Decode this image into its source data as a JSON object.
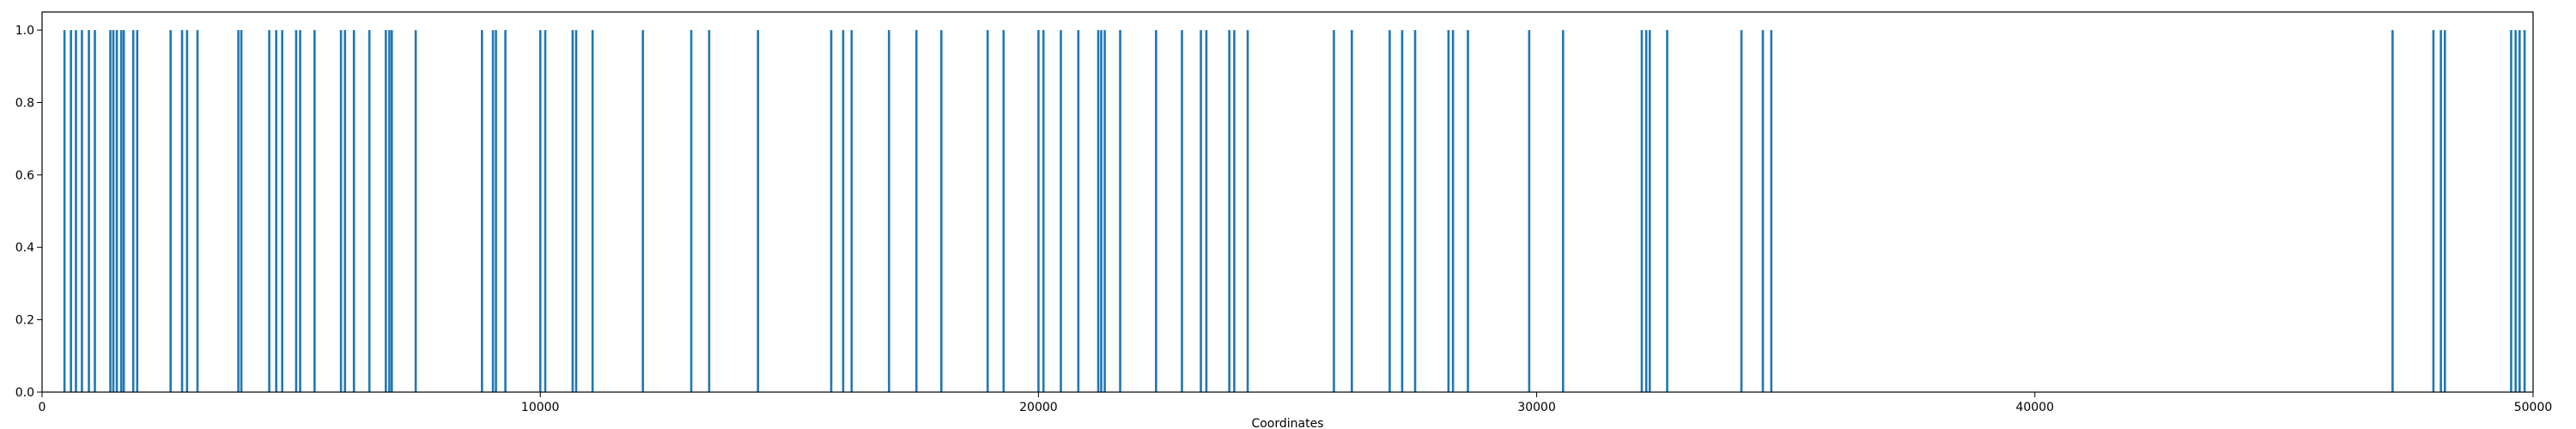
{
  "chart_data": {
    "type": "bar",
    "xlabel": "Coordinates",
    "ylabel": "",
    "xlim": [
      0,
      50000
    ],
    "ylim": [
      0.0,
      1.05
    ],
    "grid": false,
    "bar_color": "#1f77b4",
    "x_ticks": [
      0,
      10000,
      20000,
      30000,
      40000,
      50000
    ],
    "x_tick_labels": [
      "0",
      "10000",
      "20000",
      "30000",
      "40000",
      "50000"
    ],
    "y_ticks": [
      0.0,
      0.2,
      0.4,
      0.6,
      0.8,
      1.0
    ],
    "y_tick_labels": [
      "0.0",
      "0.2",
      "0.4",
      "0.6",
      "0.8",
      "1.0"
    ],
    "value": 1.0,
    "x": [
      450,
      580,
      680,
      800,
      940,
      1060,
      1370,
      1430,
      1500,
      1590,
      1640,
      1830,
      1910,
      2580,
      2810,
      2910,
      3120,
      3940,
      4000,
      4560,
      4700,
      4820,
      5100,
      5180,
      5470,
      6000,
      6080,
      6260,
      6570,
      6900,
      6970,
      7020,
      7500,
      8830,
      9050,
      9110,
      9300,
      10000,
      10100,
      10650,
      10720,
      11050,
      12060,
      13030,
      13390,
      14370,
      15840,
      16080,
      16250,
      17000,
      17550,
      18050,
      18980,
      19300,
      20000,
      20100,
      20450,
      20800,
      21200,
      21260,
      21330,
      21640,
      22360,
      22880,
      23260,
      23370,
      23830,
      23930,
      24200,
      25930,
      26290,
      27050,
      27300,
      27560,
      28230,
      28320,
      28620,
      29850,
      30530,
      32110,
      32200,
      32270,
      32620,
      34110,
      34540,
      34710,
      47180,
      48000,
      48150,
      48230,
      49560,
      49650,
      49730,
      49830
    ]
  }
}
